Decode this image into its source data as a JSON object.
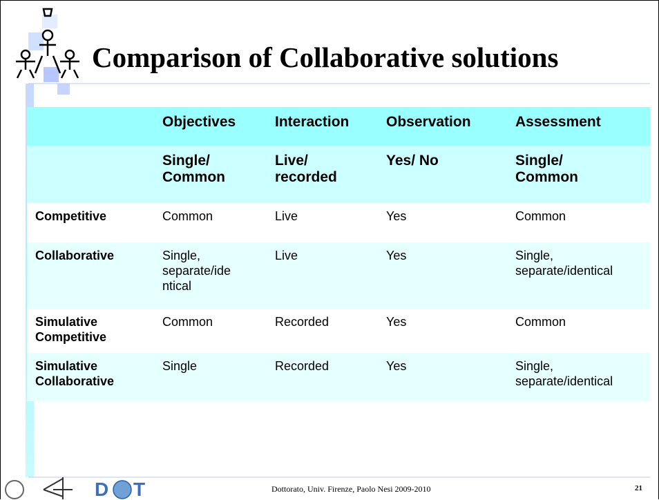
{
  "title": "Comparison of Collaborative solutions",
  "table": {
    "header": [
      [],
      [
        "Objectives"
      ],
      [
        "Interaction"
      ],
      [
        "Observation"
      ],
      [
        "Assessment"
      ]
    ],
    "subheader": [
      [],
      [
        "Single/",
        "Common"
      ],
      [
        "Live/",
        "recorded"
      ],
      [
        "Yes/ No"
      ],
      [
        "Single/",
        "Common"
      ]
    ],
    "rows": [
      [
        [
          "Competitive"
        ],
        [
          "Common"
        ],
        [
          "Live"
        ],
        [
          "Yes"
        ],
        [
          "Common"
        ]
      ],
      [
        [
          "Collaborative"
        ],
        [
          "Single,",
          "separate/ide",
          "ntical"
        ],
        [
          "Live"
        ],
        [
          "Yes"
        ],
        [
          "Single,",
          "separate/identical"
        ]
      ],
      [
        [
          "Simulative",
          "Competitive"
        ],
        [
          "Common"
        ],
        [
          "Recorded"
        ],
        [
          "Yes"
        ],
        [
          "Common"
        ]
      ],
      [
        [
          "Simulative",
          "Collaborative"
        ],
        [
          "Single"
        ],
        [
          "Recorded"
        ],
        [
          "Yes"
        ],
        [
          "Single,",
          "separate/identical"
        ]
      ]
    ]
  },
  "logo": [
    "D",
    "T"
  ],
  "footer": "Dottorato, Univ. Firenze, Paolo Nesi 2009-2010",
  "page_number": "21"
}
